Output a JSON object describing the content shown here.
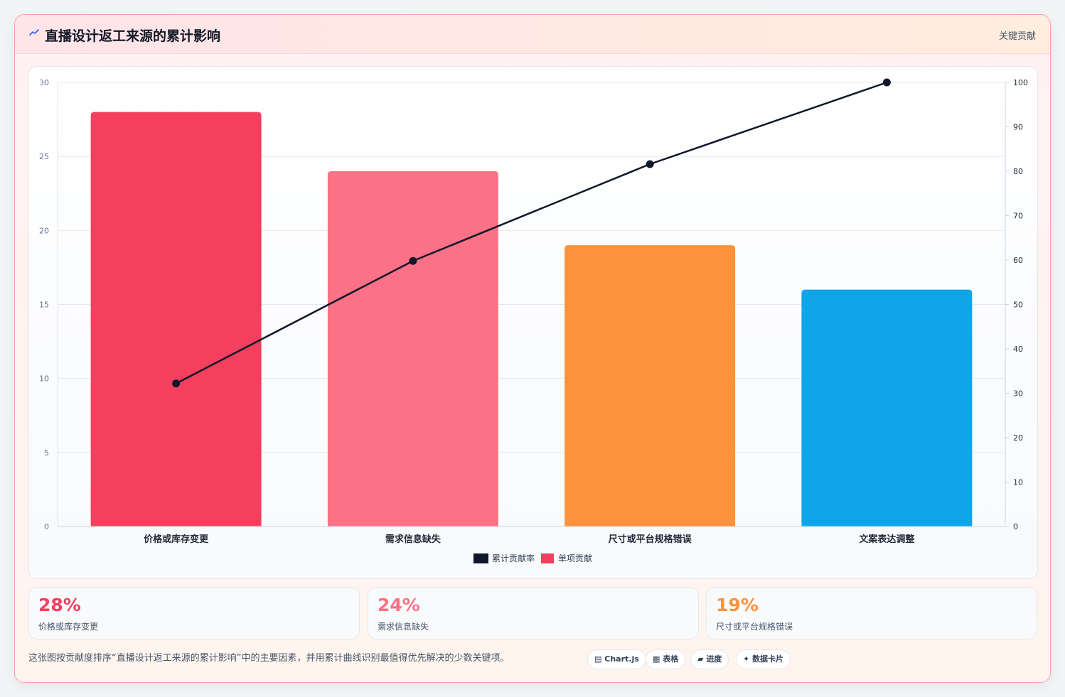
{
  "header": {
    "icon": "trend-line-icon",
    "title": "直播设计返工来源的累计影响",
    "tag": "关键贡献"
  },
  "chart_data": {
    "type": "bar",
    "categories": [
      "价格或库存变更",
      "需求信息缺失",
      "尺寸或平台规格错误",
      "文案表达调整"
    ],
    "series": [
      {
        "name": "单项贡献",
        "type": "bar",
        "axis": "left",
        "values": [
          28,
          24,
          19,
          16
        ],
        "colors": [
          "#f43f5e",
          "#fb7185",
          "#fb923c",
          "#0ea5e9"
        ]
      },
      {
        "name": "累计贡献率",
        "type": "line",
        "axis": "right",
        "values": [
          32.2,
          59.8,
          81.6,
          100
        ],
        "color": "#0f172a"
      }
    ],
    "y_left": {
      "min": 0,
      "max": 30,
      "ticks": [
        0,
        5,
        10,
        15,
        20,
        25,
        30
      ]
    },
    "y_right": {
      "min": 0,
      "max": 100,
      "ticks": [
        0,
        10,
        20,
        30,
        40,
        50,
        60,
        70,
        80,
        90,
        100
      ]
    },
    "legend": {
      "position": "bottom",
      "entries": [
        "累计贡献率",
        "单项贡献"
      ]
    },
    "grid": true
  },
  "stats": [
    {
      "value": "28%",
      "label": "价格或库存变更",
      "color": "#f43f5e"
    },
    {
      "value": "24%",
      "label": "需求信息缺失",
      "color": "#fb7185"
    },
    {
      "value": "19%",
      "label": "尺寸或平台规格错误",
      "color": "#fb923c"
    }
  ],
  "caption": "这张图按贡献度排序“直播设计返工来源的累计影响”中的主要因素，并用累计曲线识别最值得优先解决的少数关键项。",
  "pills": [
    {
      "icon": "chart-icon",
      "label": "Chart.js"
    },
    {
      "icon": "table-icon",
      "label": "表格"
    },
    {
      "icon": "progress-icon",
      "label": "进度"
    },
    {
      "icon": "sparkle-icon",
      "label": "数据卡片"
    }
  ]
}
